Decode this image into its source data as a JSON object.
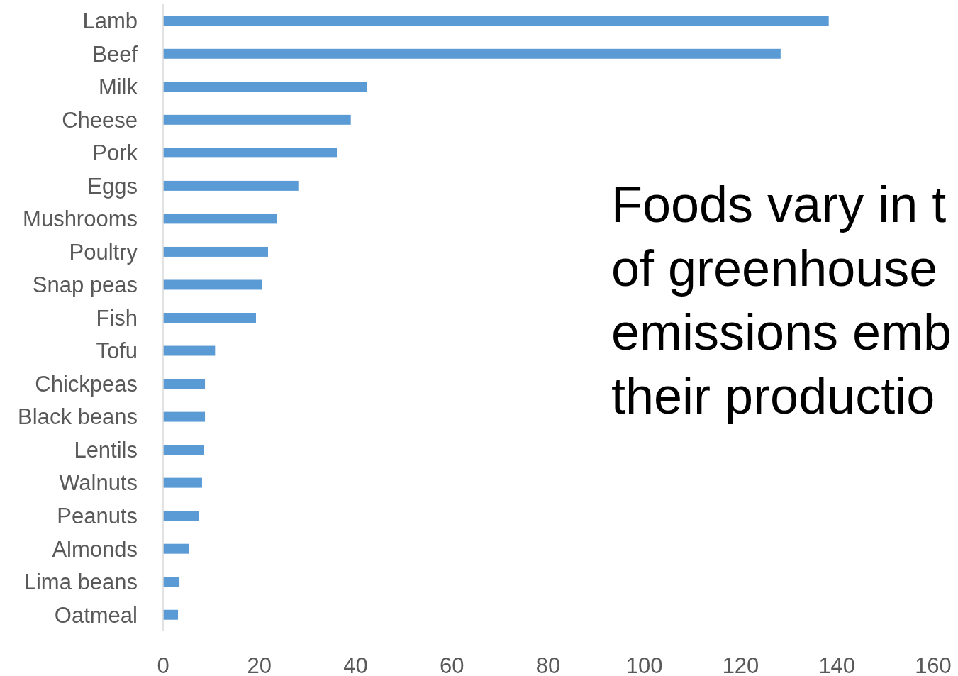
{
  "chart_data": {
    "type": "bar",
    "orientation": "horizontal",
    "categories": [
      "Lamb",
      "Beef",
      "Milk",
      "Cheese",
      "Pork",
      "Eggs",
      "Mushrooms",
      "Poultry",
      "Snap peas",
      "Fish",
      "Tofu",
      "Chickpeas",
      "Black beans",
      "Lentils",
      "Walnuts",
      "Peanuts",
      "Almonds",
      "Lima beans",
      "Oatmeal"
    ],
    "values": [
      138.3,
      128.3,
      42.4,
      39,
      36.1,
      28.1,
      23.6,
      21.8,
      20.6,
      19.3,
      10.8,
      8.7,
      8.7,
      8.5,
      8.1,
      7.5,
      5.4,
      3.4,
      3.1
    ],
    "color": "#5b9bd5",
    "xlim": [
      0,
      160
    ],
    "xticks": [
      0,
      20,
      40,
      60,
      80,
      100,
      120,
      140,
      160
    ],
    "annotations": [
      "Foods vary in t",
      "of greenhouse",
      "emissions emb",
      "their productio"
    ]
  }
}
